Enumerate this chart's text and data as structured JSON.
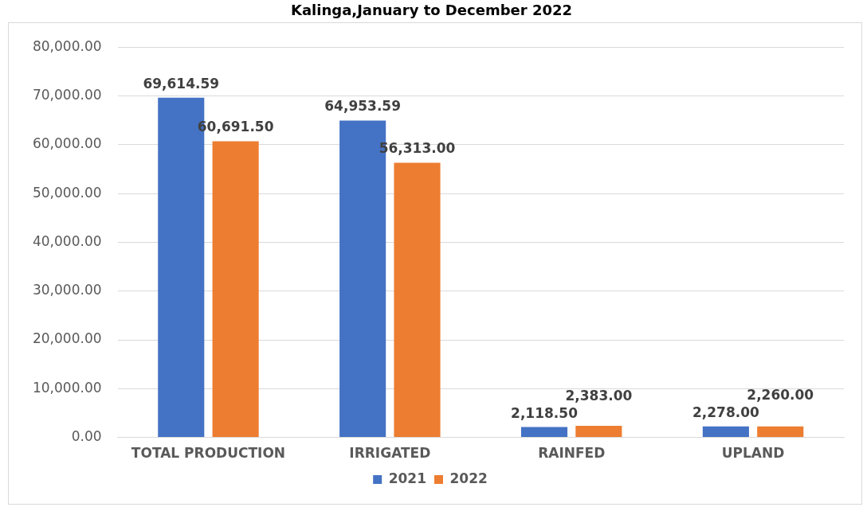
{
  "chart_data": {
    "type": "bar",
    "title": "Kalinga,January to December 2022",
    "categories": [
      "TOTAL PRODUCTION",
      "IRRIGATED",
      "RAINFED",
      "UPLAND"
    ],
    "series": [
      {
        "name": "2021",
        "color": "#4472c4",
        "values": [
          69614.59,
          64953.59,
          2118.5,
          2278
        ]
      },
      {
        "name": "2022",
        "color": "#ed7d31",
        "values": [
          60691.5,
          56313,
          2383,
          2260
        ]
      }
    ],
    "ylim": [
      0,
      80000
    ],
    "yticks": [
      {
        "value": 0,
        "label": "0.00"
      },
      {
        "value": 10000,
        "label": "10,000.00"
      },
      {
        "value": 20000,
        "label": "20,000.00"
      },
      {
        "value": 30000,
        "label": "30,000.00"
      },
      {
        "value": 40000,
        "label": "40,000.00"
      },
      {
        "value": 50000,
        "label": "50,000.00"
      },
      {
        "value": 60000,
        "label": "60,000.00"
      },
      {
        "value": 70000,
        "label": "70,000.00"
      },
      {
        "value": 80000,
        "label": "80,000.00"
      }
    ],
    "grid": "y",
    "legend": "bottom",
    "value_labels": [
      [
        "69,614.59",
        "64,953.59",
        "2,118.50",
        "2,278.00"
      ],
      [
        "60,691.50",
        "56,313.00",
        "2,383.00",
        "2,260.00"
      ]
    ]
  }
}
